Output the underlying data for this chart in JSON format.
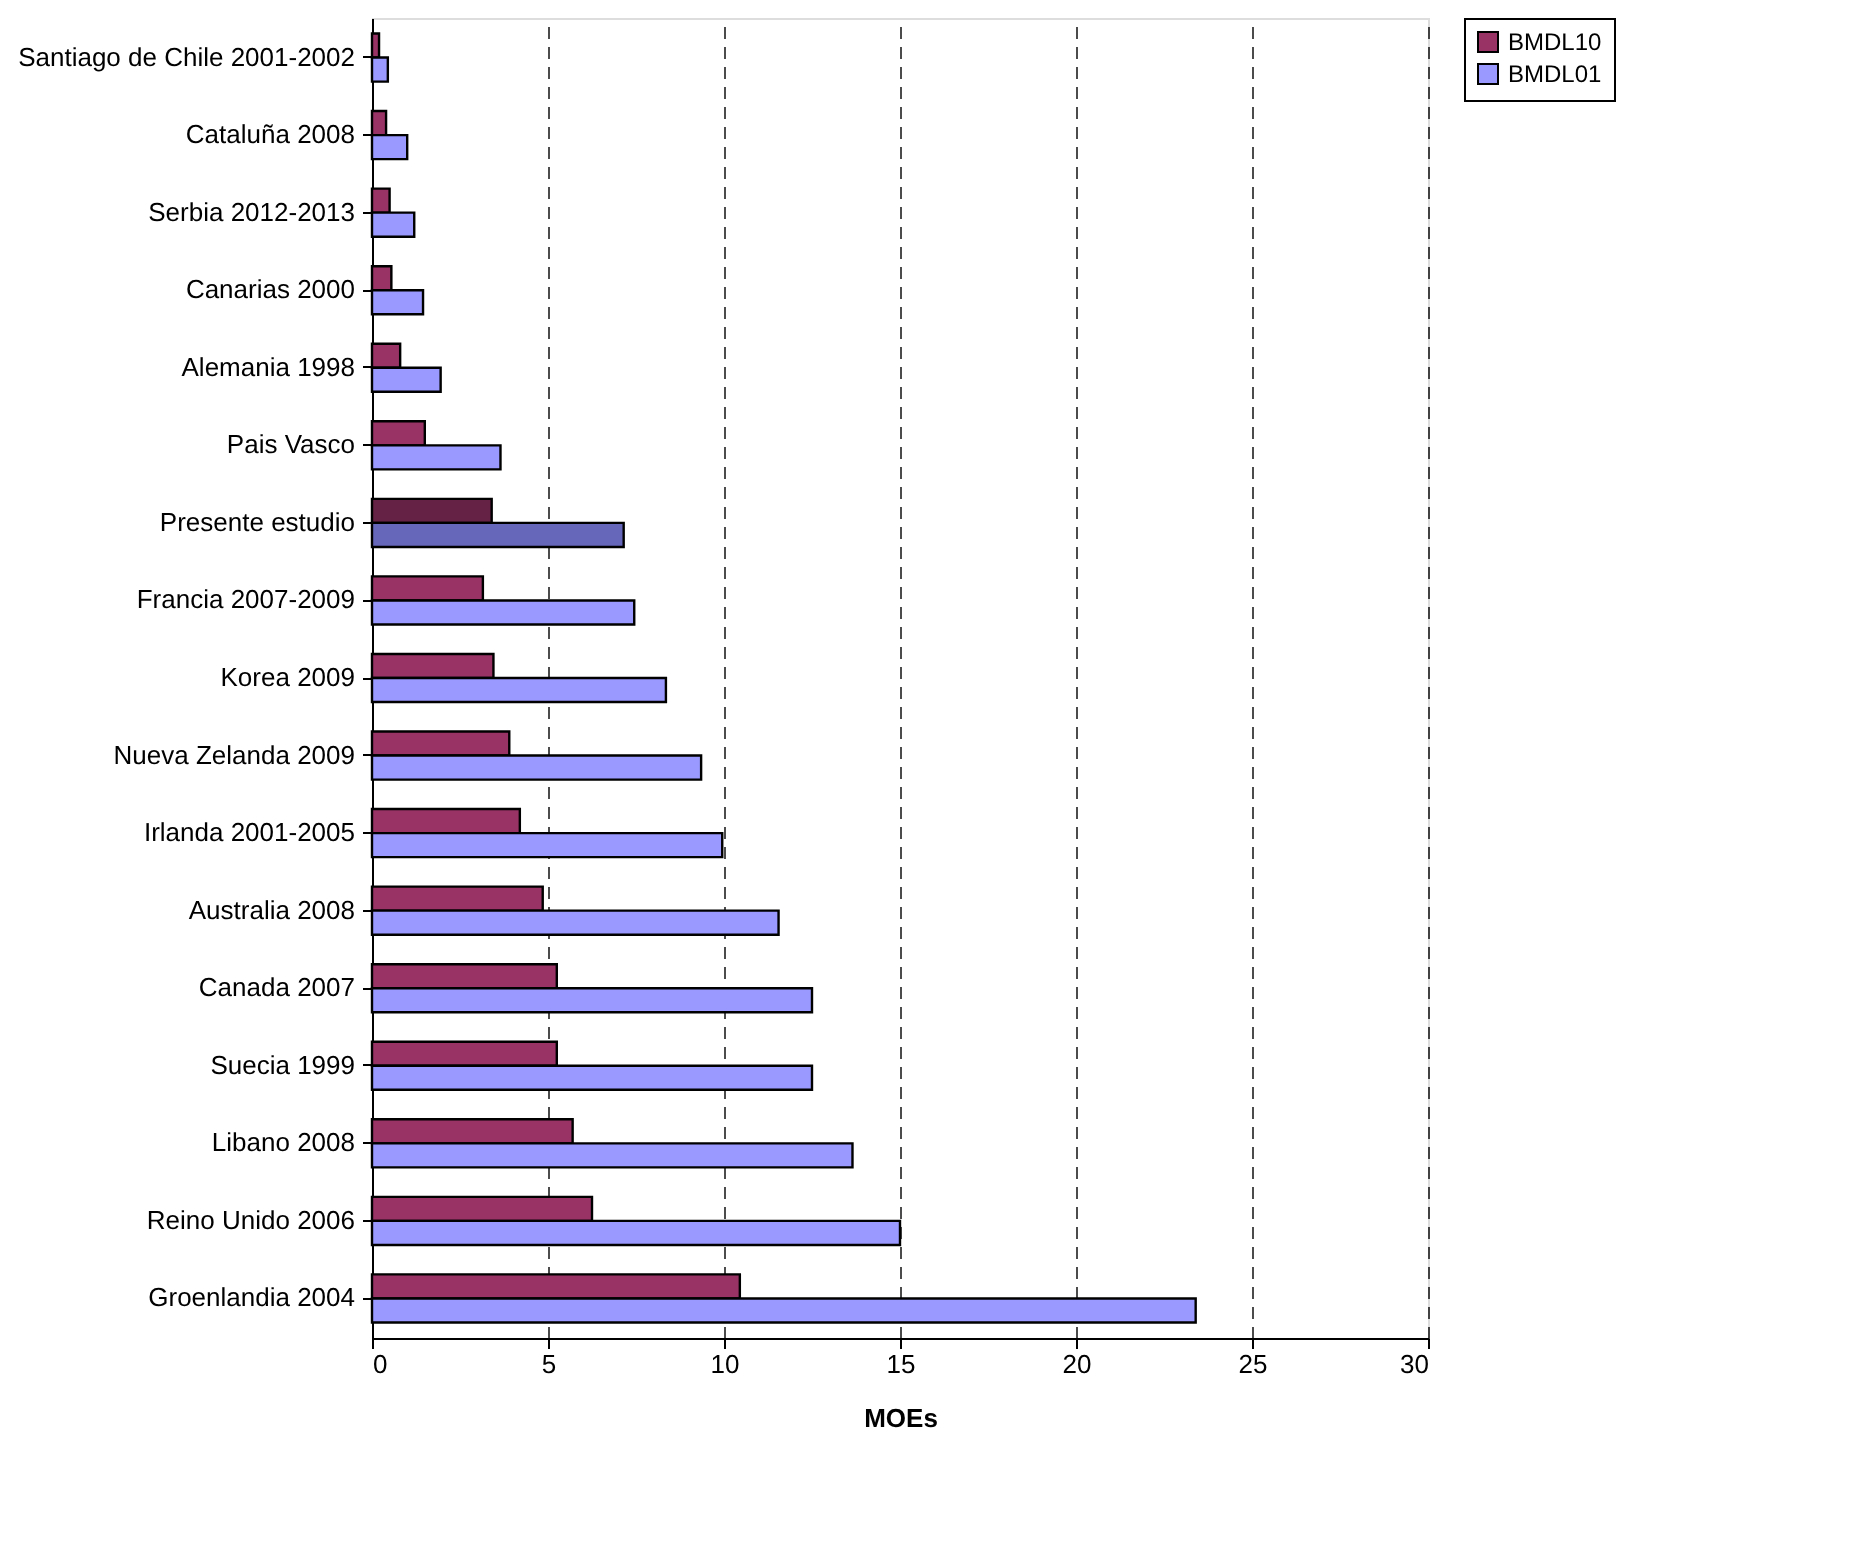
{
  "chart_data": {
    "type": "bar",
    "orientation": "horizontal",
    "xlabel": "MOEs",
    "categories": [
      "Santiago de Chile 2001-2002",
      "Cataluña 2008",
      "Serbia 2012-2013",
      "Canarias 2000",
      "Alemania 1998",
      "Pais Vasco",
      "Presente estudio",
      "Francia 2007-2009",
      "Korea 2009",
      "Nueva Zelanda 2009",
      "Irlanda 2001-2005",
      "Australia 2008",
      "Canada 2007",
      "Suecia 1999",
      "Libano 2008",
      "Reino Unido 2006",
      "Groenlandia 2004"
    ],
    "series": [
      {
        "name": "BMDL10",
        "color": "#993366",
        "colors": [
          "#993366",
          "#993366",
          "#993366",
          "#993366",
          "#993366",
          "#993366",
          "#662244",
          "#993366",
          "#993366",
          "#993366",
          "#993366",
          "#993366",
          "#993366",
          "#993366",
          "#993366",
          "#993366",
          "#993366"
        ],
        "values": [
          0.2,
          0.4,
          0.5,
          0.55,
          0.8,
          1.5,
          3.4,
          3.15,
          3.45,
          3.9,
          4.2,
          4.85,
          5.25,
          5.25,
          5.7,
          6.25,
          10.45
        ]
      },
      {
        "name": "BMDL01",
        "color": "#9999ff",
        "colors": [
          "#9999ff",
          "#9999ff",
          "#9999ff",
          "#9999ff",
          "#9999ff",
          "#9999ff",
          "#6666bb",
          "#9999ff",
          "#9999ff",
          "#9999ff",
          "#9999ff",
          "#9999ff",
          "#9999ff",
          "#9999ff",
          "#9999ff",
          "#9999ff",
          "#9999ff"
        ],
        "values": [
          0.45,
          1.0,
          1.2,
          1.45,
          1.95,
          3.65,
          7.15,
          7.45,
          8.35,
          9.35,
          9.95,
          11.55,
          12.5,
          12.5,
          13.65,
          15.0,
          23.4
        ]
      }
    ],
    "xlim": [
      0,
      30
    ],
    "xticks": [
      0,
      5,
      10,
      15,
      20,
      25,
      30
    ],
    "grid": "x",
    "legend": "right"
  }
}
